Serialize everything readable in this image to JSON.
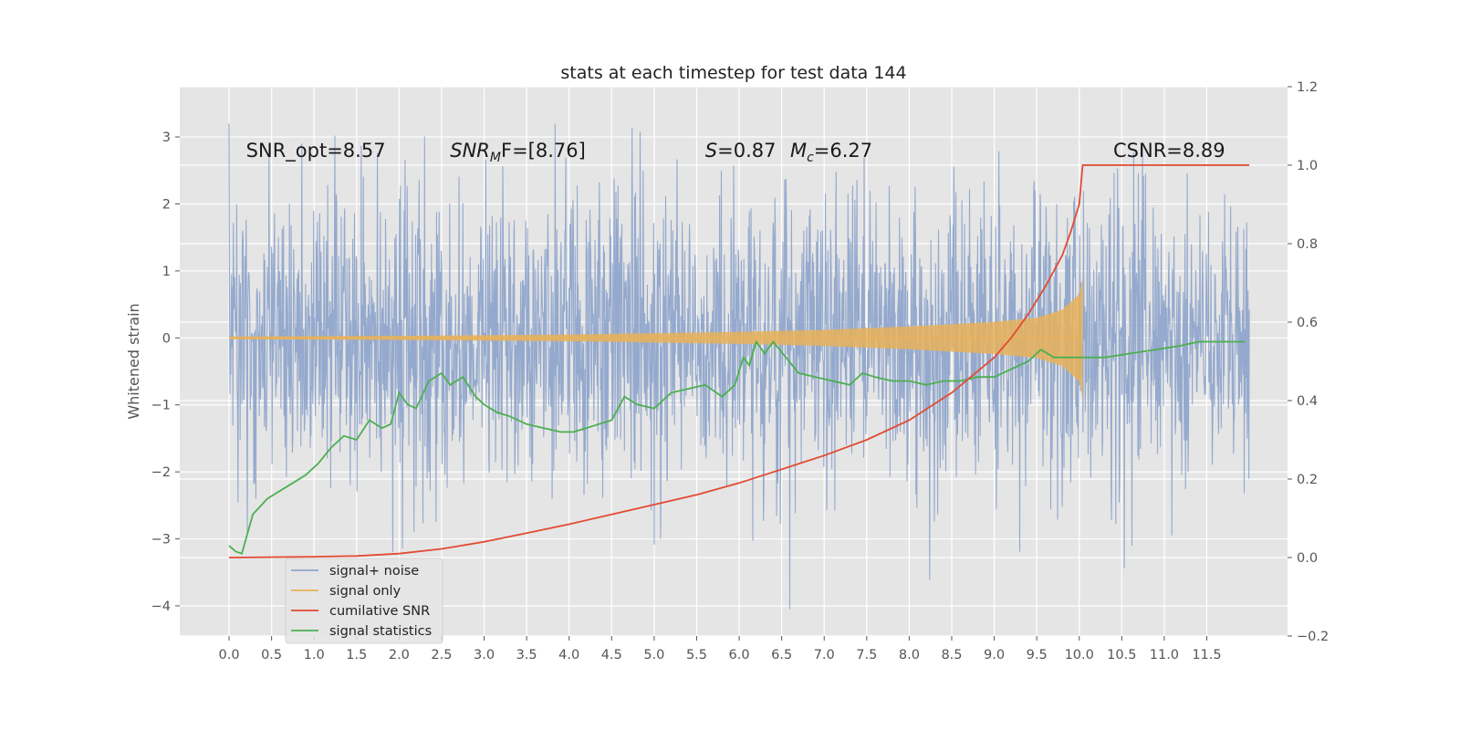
{
  "chart_data": {
    "type": "line",
    "title": "stats at each timestep for test data 144",
    "ylabel": "Whitened strain",
    "xlabel": "",
    "xlim": [
      -0.58,
      12.45
    ],
    "ylim": [
      -4.45,
      3.75
    ],
    "y2lim": [
      -0.2,
      1.2
    ],
    "xticks": [
      "0.0",
      "0.5",
      "1.0",
      "1.5",
      "2.0",
      "2.5",
      "3.0",
      "3.5",
      "4.0",
      "4.5",
      "5.0",
      "5.5",
      "6.0",
      "6.5",
      "7.0",
      "7.5",
      "8.0",
      "8.5",
      "9.0",
      "9.5",
      "10.0",
      "10.5",
      "11.0",
      "11.5"
    ],
    "yticks": [
      "−4",
      "−3",
      "−2",
      "−1",
      "0",
      "1",
      "2",
      "3"
    ],
    "y2ticks": [
      "−0.2",
      "0.0",
      "0.2",
      "0.4",
      "0.6",
      "0.8",
      "1.0",
      "1.2"
    ],
    "grid": true,
    "legend_position": "lower-left",
    "colors": {
      "noise": "#8fa5cb",
      "signal": "#e8b259",
      "snr": "#e24a33",
      "stats": "#4caf50",
      "background": "#e5e5e5",
      "grid": "#ffffff"
    },
    "series": [
      {
        "name": "signal+ noise",
        "axis": "left",
        "x_range": [
          0.0,
          12.0
        ],
        "peak_envelope": 3.2,
        "min_value": -4.05
      },
      {
        "name": "signal only",
        "axis": "left",
        "x_range": [
          0.0,
          10.04
        ],
        "envelope_x": [
          0.0,
          2.0,
          4.0,
          6.0,
          7.0,
          8.0,
          9.0,
          9.5,
          9.8,
          10.0,
          10.04
        ],
        "envelope_y": [
          0.02,
          0.03,
          0.05,
          0.09,
          0.12,
          0.17,
          0.24,
          0.3,
          0.42,
          0.65,
          0.9
        ]
      },
      {
        "name": "cumilative SNR",
        "axis": "right",
        "x": [
          0.0,
          1.0,
          1.5,
          2.0,
          2.5,
          3.0,
          3.5,
          4.0,
          4.5,
          5.0,
          5.5,
          6.0,
          6.5,
          7.0,
          7.5,
          8.0,
          8.5,
          9.0,
          9.2,
          9.4,
          9.6,
          9.8,
          9.9,
          10.0,
          10.04,
          12.0
        ],
        "y": [
          0.0,
          0.002,
          0.004,
          0.01,
          0.022,
          0.04,
          0.062,
          0.085,
          0.11,
          0.135,
          0.16,
          0.19,
          0.225,
          0.26,
          0.3,
          0.35,
          0.42,
          0.51,
          0.56,
          0.62,
          0.69,
          0.77,
          0.83,
          0.9,
          1.0,
          1.0
        ]
      },
      {
        "name": "signal statistics",
        "axis": "right",
        "x": [
          0.0,
          0.08,
          0.15,
          0.28,
          0.45,
          0.6,
          0.75,
          0.9,
          1.05,
          1.2,
          1.35,
          1.5,
          1.65,
          1.8,
          1.9,
          2.0,
          2.1,
          2.2,
          2.35,
          2.5,
          2.6,
          2.75,
          2.9,
          3.0,
          3.15,
          3.3,
          3.5,
          3.7,
          3.9,
          4.05,
          4.2,
          4.35,
          4.5,
          4.65,
          4.8,
          5.0,
          5.2,
          5.4,
          5.6,
          5.8,
          5.95,
          6.05,
          6.12,
          6.2,
          6.3,
          6.4,
          6.55,
          6.7,
          6.9,
          7.1,
          7.3,
          7.45,
          7.6,
          7.8,
          8.0,
          8.2,
          8.4,
          8.6,
          8.8,
          9.0,
          9.2,
          9.4,
          9.55,
          9.7,
          9.85,
          10.0,
          10.3,
          10.6,
          10.9,
          11.2,
          11.4,
          11.6,
          11.8,
          11.95
        ],
        "y": [
          0.03,
          0.015,
          0.01,
          0.11,
          0.15,
          0.17,
          0.19,
          0.21,
          0.24,
          0.28,
          0.31,
          0.3,
          0.35,
          0.33,
          0.34,
          0.42,
          0.39,
          0.38,
          0.45,
          0.47,
          0.44,
          0.46,
          0.41,
          0.39,
          0.37,
          0.36,
          0.34,
          0.33,
          0.32,
          0.32,
          0.33,
          0.34,
          0.35,
          0.41,
          0.39,
          0.38,
          0.42,
          0.43,
          0.44,
          0.41,
          0.44,
          0.51,
          0.49,
          0.55,
          0.52,
          0.55,
          0.51,
          0.47,
          0.46,
          0.45,
          0.44,
          0.47,
          0.46,
          0.45,
          0.45,
          0.44,
          0.45,
          0.45,
          0.46,
          0.46,
          0.48,
          0.5,
          0.53,
          0.51,
          0.51,
          0.51,
          0.51,
          0.52,
          0.53,
          0.54,
          0.55,
          0.55,
          0.55,
          0.55
        ]
      }
    ],
    "annotations": [
      {
        "text": "SNR_opt=8.57",
        "x": 0.2,
        "y": 2.7,
        "style": "plain"
      },
      {
        "base": "SNR",
        "sub": "M",
        "tail": "F=[8.76]",
        "x": 2.6,
        "y": 2.7,
        "style": "math"
      },
      {
        "base": "S",
        "sub": "",
        "tail": "=0.87",
        "x": 5.6,
        "y": 2.7,
        "style": "math"
      },
      {
        "base": "M",
        "sub": "c",
        "tail": "=6.27",
        "x": 6.6,
        "y": 2.7,
        "style": "math"
      },
      {
        "text": "CSNR=8.89",
        "x": 10.4,
        "y": 2.7,
        "style": "plain"
      }
    ]
  }
}
